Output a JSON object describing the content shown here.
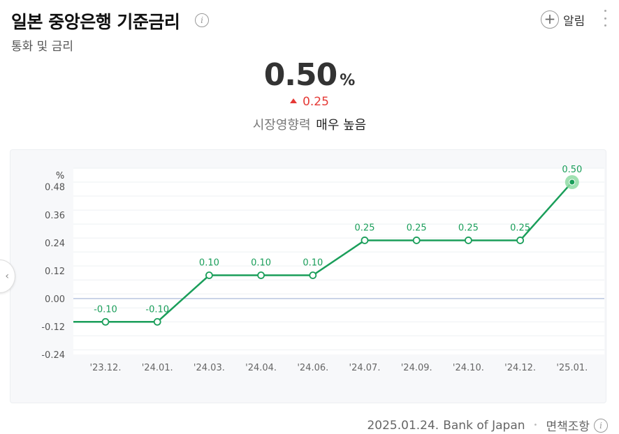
{
  "header": {
    "title": "일본 중앙은행 기준금리",
    "subtitle": "통화 및 금리",
    "alarm_label": "알림"
  },
  "summary": {
    "value": "0.50",
    "unit": "%",
    "change": "0.25",
    "impact_label": "시장영향력",
    "impact_value": "매우 높음"
  },
  "footer": {
    "date": "2025.01.24.",
    "source": "Bank of Japan",
    "disclaimer": "면책조항"
  },
  "colors": {
    "line": "#1a9e5a",
    "up": "#e53935",
    "zero_line": "#b9c6e0"
  },
  "chart_data": {
    "type": "line",
    "ylabel": "%",
    "ylim": [
      -0.24,
      0.56
    ],
    "yticks": [
      0.48,
      0.36,
      0.24,
      0.12,
      0.0,
      -0.12,
      -0.24
    ],
    "ytick_labels": [
      "0.48",
      "0.36",
      "0.24",
      "0.12",
      "0.00",
      "-0.12",
      "-0.24"
    ],
    "categories": [
      "'23.12.",
      "'24.01.",
      "'24.03.",
      "'24.04.",
      "'24.06.",
      "'24.07.",
      "'24.09.",
      "'24.10.",
      "'24.12.",
      "'25.01."
    ],
    "values": [
      -0.1,
      -0.1,
      0.1,
      0.1,
      0.1,
      0.25,
      0.25,
      0.25,
      0.25,
      0.5
    ],
    "value_labels": [
      "-0.10",
      "-0.10",
      "0.10",
      "0.10",
      "0.10",
      "0.25",
      "0.25",
      "0.25",
      "0.25",
      "0.50"
    ],
    "start_value": -0.1,
    "grid": true,
    "highlight_last": true
  }
}
